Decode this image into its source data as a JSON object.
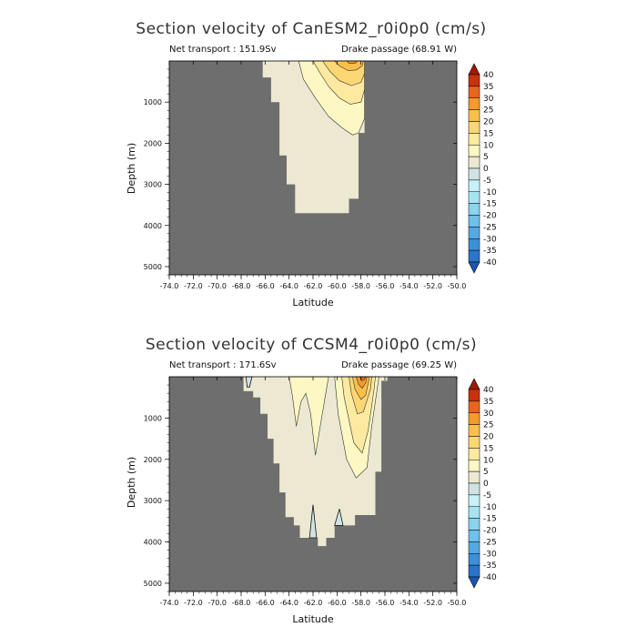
{
  "chart_data": [
    {
      "type": "contour",
      "title": "Section velocity of CanESM2_r0i0p0 (cm/s)",
      "left_label": "Net transport : 151.9Sv",
      "right_label": "Drake passage (68.91 W)",
      "xlabel": "Latitude",
      "ylabel": "Depth (m)",
      "xlim": [
        -74.0,
        -50.0
      ],
      "ylim": [
        0,
        5200
      ],
      "xticks": [
        "-74.0",
        "-72.0",
        "-70.0",
        "-68.0",
        "-66.0",
        "-64.0",
        "-62.0",
        "-60.0",
        "-58.0",
        "-56.0",
        "-54.0",
        "-52.0",
        "-50.0"
      ],
      "yticks": [
        "1000",
        "2000",
        "3000",
        "4000",
        "5000"
      ],
      "colorbar_levels": [
        "40",
        "35",
        "30",
        "25",
        "20",
        "15",
        "10",
        "5",
        "0",
        "-5",
        "-10",
        "-15",
        "-20",
        "-25",
        "-30",
        "-35",
        "-40"
      ],
      "land_color": "#6e6e6e",
      "ocean_floor_profile": [
        [
          -66.2,
          0
        ],
        [
          -66.2,
          400
        ],
        [
          -65.5,
          400
        ],
        [
          -65.5,
          1000
        ],
        [
          -64.8,
          1000
        ],
        [
          -64.8,
          2300
        ],
        [
          -64.2,
          2300
        ],
        [
          -64.2,
          3000
        ],
        [
          -63.5,
          3000
        ],
        [
          -63.5,
          3700
        ],
        [
          -59.0,
          3700
        ],
        [
          -59.0,
          3350
        ],
        [
          -58.2,
          3350
        ],
        [
          -58.2,
          1750
        ],
        [
          -57.7,
          1750
        ],
        [
          -57.7,
          0
        ]
      ],
      "velocity_max_region": {
        "lat_range": [
          -63.0,
          -57.5
        ],
        "depth_range": [
          0,
          1700
        ],
        "max_value": 25
      }
    },
    {
      "type": "contour",
      "title": "Section velocity of CCSM4_r0i0p0 (cm/s)",
      "left_label": "Net transport : 171.6Sv",
      "right_label": "Drake passage (69.25 W)",
      "xlabel": "Latitude",
      "ylabel": "Depth (m)",
      "xlim": [
        -74.0,
        -50.0
      ],
      "ylim": [
        0,
        5200
      ],
      "xticks": [
        "-74.0",
        "-72.0",
        "-70.0",
        "-68.0",
        "-66.0",
        "-64.0",
        "-62.0",
        "-60.0",
        "-58.0",
        "-56.0",
        "-54.0",
        "-52.0",
        "-50.0"
      ],
      "yticks": [
        "1000",
        "2000",
        "3000",
        "4000",
        "5000"
      ],
      "colorbar_levels": [
        "40",
        "35",
        "30",
        "25",
        "20",
        "15",
        "10",
        "5",
        "0",
        "-5",
        "-10",
        "-15",
        "-20",
        "-25",
        "-30",
        "-35",
        "-40"
      ],
      "land_color": "#6e6e6e",
      "velocity_max_region": {
        "lat_range": [
          -59.0,
          -56.5
        ],
        "depth_range": [
          0,
          2300
        ],
        "max_value": 30
      }
    }
  ],
  "colors": {
    "land": "#6e6e6e",
    "c_0_5": "#ece8d2",
    "c_5_10": "#fdf7c4",
    "c_10_15": "#fde9a0",
    "c_15_20": "#fcd774",
    "c_20_25": "#fbbf4c",
    "c_25_30": "#f59a2c",
    "c_30_35": "#e7661c",
    "c_35_40": "#c8320e",
    "c_gt40": "#a01a06",
    "n_0_5": "#cfe3e4",
    "n_5_10": "#c6f1f9",
    "n_10_15": "#a6e4f4",
    "n_15_20": "#8bd3ef",
    "n_20_25": "#6fc0ea",
    "n_25_30": "#54a9e2",
    "n_30_35": "#3d8fd8",
    "n_35_40": "#2a74c9",
    "n_lt40": "#1b55b3"
  }
}
